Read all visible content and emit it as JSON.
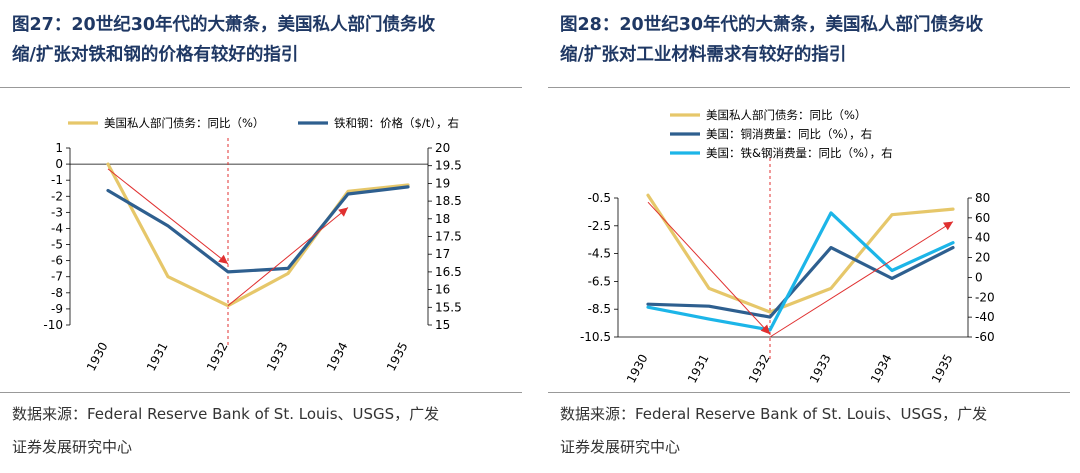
{
  "panels": [
    {
      "title_line1": "图27：20世纪30年代的大萧条，美国私人部门债务收",
      "title_line2": "缩/扩张对铁和钢的价格有较好的指引",
      "source_line1": "数据来源：Federal Reserve Bank of St. Louis、USGS，广发",
      "source_line2": "证券发展研究中心"
    },
    {
      "title_line1": "图28：20世纪30年代的大萧条，美国私人部门债务收",
      "title_line2": "缩/扩张对工业材料需求有较好的指引",
      "source_line1": "数据来源：Federal Reserve Bank of St. Louis、USGS，广发",
      "source_line2": "证券发展研究中心"
    }
  ],
  "chart_data": [
    {
      "type": "line",
      "categories": [
        "1930",
        "1931",
        "1932",
        "1933",
        "1934",
        "1935"
      ],
      "series": [
        {
          "name": "美国私人部门债务：同比（%）",
          "axis": "left",
          "color": "#e6c76a",
          "values": [
            0,
            -7,
            -8.8,
            -6.8,
            -1.7,
            -1.3
          ]
        },
        {
          "name": "铁和钢：价格（$/t），右",
          "axis": "right",
          "color": "#2e5f8f",
          "values": [
            18.8,
            17.8,
            16.5,
            16.6,
            18.7,
            18.9
          ]
        }
      ],
      "y_left": {
        "min": -10,
        "max": 1,
        "ticks": [
          "1",
          "0",
          "-1",
          "-2",
          "-3",
          "-4",
          "-5",
          "-6",
          "-7",
          "-8",
          "-9",
          "-10"
        ]
      },
      "y_right": {
        "min": 15,
        "max": 20,
        "ticks": [
          "20",
          "19.5",
          "19",
          "18.5",
          "18",
          "17.5",
          "17",
          "16.5",
          "16",
          "15.5",
          "15"
        ]
      },
      "marker_category": "1932",
      "arrows": [
        {
          "from": [
            "1930",
            -0.3
          ],
          "to": [
            "1932",
            -6.2
          ],
          "axis": "left"
        },
        {
          "from": [
            "1932",
            -8.8
          ],
          "to": [
            "1934",
            -2.7
          ],
          "axis": "left"
        }
      ],
      "legend_position": "top"
    },
    {
      "type": "line",
      "categories": [
        "1930",
        "1931",
        "1932",
        "1933",
        "1934",
        "1935"
      ],
      "series": [
        {
          "name": "美国私人部门债务：同比（%）",
          "axis": "left",
          "color": "#e6c76a",
          "values": [
            -0.3,
            -7,
            -8.7,
            -7,
            -1.7,
            -1.3
          ]
        },
        {
          "name": "美国：铜消费量：同比（%），右",
          "axis": "right",
          "color": "#2e5f8f",
          "values": [
            -27,
            -29,
            -40,
            30,
            -1,
            30
          ]
        },
        {
          "name": "美国：铁&钢消费量：同比（%），右",
          "axis": "right",
          "color": "#1cb5e8",
          "values": [
            -30,
            -42,
            -53,
            65,
            7,
            35
          ]
        }
      ],
      "y_left": {
        "min": -10.5,
        "max": -0.5,
        "ticks": [
          "-0.5",
          "-2.5",
          "-4.5",
          "-6.5",
          "-8.5",
          "-10.5"
        ]
      },
      "y_right": {
        "min": -60,
        "max": 80,
        "ticks": [
          "80",
          "60",
          "40",
          "20",
          "0",
          "-20",
          "-40",
          "-60"
        ]
      },
      "marker_category": "1932",
      "arrows": [
        {
          "from": [
            "1930",
            -0.8
          ],
          "to": [
            "1932",
            -10.3
          ],
          "axis": "left"
        },
        {
          "from": [
            "1932",
            -10.5
          ],
          "to": [
            "1935",
            -2.2
          ],
          "axis": "left"
        }
      ],
      "legend_position": "top-left"
    }
  ]
}
